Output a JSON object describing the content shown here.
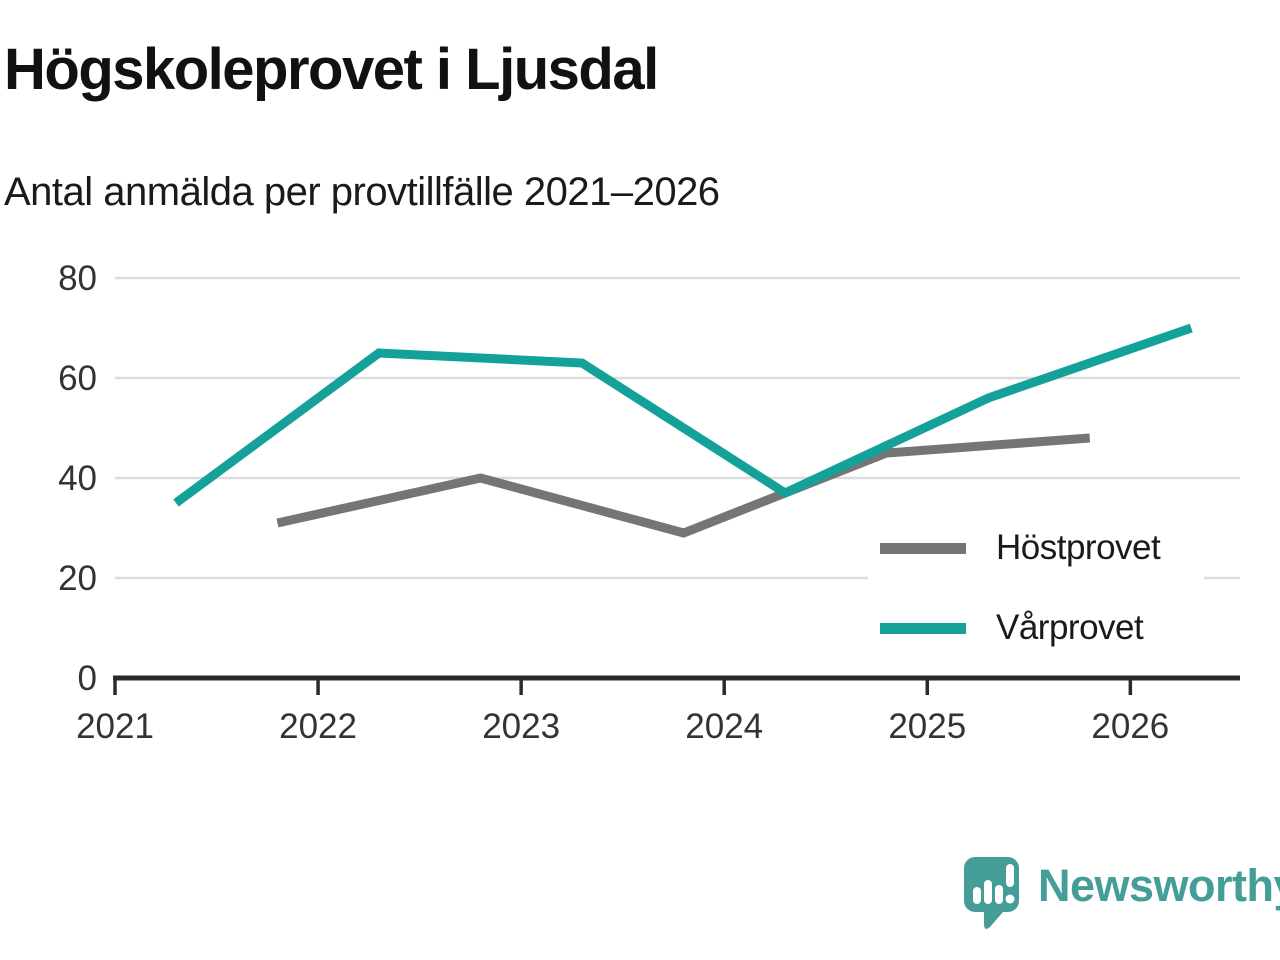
{
  "header": {
    "title": "Högskoleprovet i Ljusdal",
    "subtitle": "Antal anmälda per provtillfälle 2021–2026"
  },
  "chart_data": {
    "type": "line",
    "title": "Högskoleprovet i Ljusdal",
    "subtitle": "Antal anmälda per provtillfälle 2021–2026",
    "xlabel": "",
    "ylabel": "",
    "ylim": [
      0,
      80
    ],
    "yticks": [
      0,
      20,
      40,
      60,
      80
    ],
    "xlim": [
      2021,
      2026.54
    ],
    "xticks": [
      2021,
      2022,
      2023,
      2024,
      2025,
      2026
    ],
    "grid": "horizontal",
    "legend_position": "inside-bottom-right",
    "series": [
      {
        "name": "Höstprovet",
        "color": "#757575",
        "x": [
          2021.8,
          2022.8,
          2023.8,
          2024.8,
          2025.8
        ],
        "values": [
          31,
          40,
          29,
          45,
          48
        ]
      },
      {
        "name": "Vårprovet",
        "color": "#14a199",
        "x": [
          2021.3,
          2022.3,
          2023.3,
          2024.3,
          2025.3,
          2026.3
        ],
        "values": [
          35,
          65,
          63,
          37,
          56,
          70
        ]
      }
    ]
  },
  "colors": {
    "gridline": "#dcdcdc",
    "axis": "#2b2b2b",
    "tick_label": "#333333",
    "logo_teal": "#459d98"
  },
  "footer": {
    "logo_text": "Newsworthy"
  },
  "icons": {
    "logo_icon": "newsworthy-speech-bubble-bar-chart-icon"
  }
}
